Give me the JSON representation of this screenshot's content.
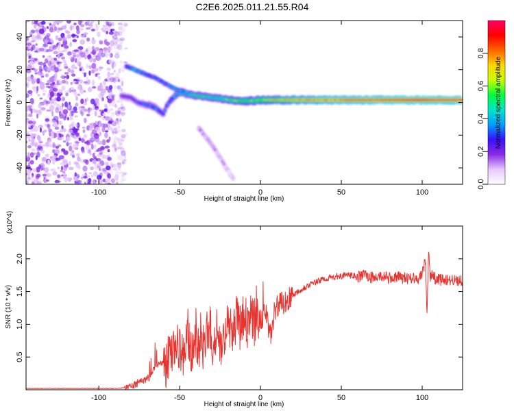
{
  "title": "C2E6.2025.011.21.55.R04",
  "chart_data": [
    {
      "type": "heatmap",
      "title": "C2E6.2025.011.21.55.R04",
      "xlabel": "Height of straight line (km)",
      "ylabel": "Frequency (Hz)",
      "xlim": [
        -145,
        125
      ],
      "ylim": [
        -50,
        50
      ],
      "x_ticks": [
        -100,
        -50,
        0,
        50,
        100
      ],
      "y_ticks": [
        -40,
        -20,
        0,
        20,
        40
      ],
      "colorbar": {
        "label": "Normalized spectral amplitude",
        "range": [
          0.0,
          1.0
        ],
        "ticks": [
          0.0,
          0.2,
          0.4,
          0.6,
          0.8
        ],
        "colors": [
          "#ffffff",
          "#e6c8ff",
          "#8a2be2",
          "#3a10ff",
          "#00a0ff",
          "#00e6c8",
          "#00ff40",
          "#c8ff00",
          "#ffd700",
          "#ff6400",
          "#ff0000",
          "#ff0064"
        ]
      },
      "features": [
        {
          "name": "noise",
          "x_range": [
            -145,
            -84
          ],
          "y_range": [
            -50,
            50
          ],
          "amplitude": 0.1
        },
        {
          "name": "main-trace",
          "points": [
            [
              -86,
              4
            ],
            [
              -80,
              3
            ],
            [
              -76,
              0
            ],
            [
              -72,
              -1
            ],
            [
              -68,
              -2
            ],
            [
              -64,
              -4
            ],
            [
              -60,
              -7
            ],
            [
              -58,
              -2
            ],
            [
              -55,
              2
            ],
            [
              -50,
              6
            ],
            [
              -45,
              5
            ],
            [
              -38,
              4
            ],
            [
              -30,
              3
            ],
            [
              -22,
              2
            ],
            [
              -15,
              1
            ],
            [
              -5,
              1
            ],
            [
              0,
              1.5
            ],
            [
              10,
              1.5
            ],
            [
              20,
              1.5
            ],
            [
              40,
              1.5
            ],
            [
              60,
              1.5
            ],
            [
              80,
              1.5
            ],
            [
              100,
              1.5
            ],
            [
              110,
              1.5
            ],
            [
              125,
              1.5
            ]
          ],
          "amplitude": [
            0.2,
            0.2,
            0.25,
            0.3,
            0.35,
            0.35,
            0.3,
            0.3,
            0.35,
            0.45,
            0.5,
            0.5,
            0.5,
            0.55,
            0.6,
            0.6,
            0.65,
            0.7,
            0.75,
            0.8,
            0.85,
            0.9,
            0.95,
            0.9,
            0.9
          ]
        },
        {
          "name": "upper-branch",
          "points": [
            [
              -83,
              22
            ],
            [
              -78,
              20
            ],
            [
              -73,
              18
            ],
            [
              -65,
              15
            ],
            [
              -58,
              11
            ],
            [
              -52,
              8
            ],
            [
              -45,
              6
            ]
          ],
          "amplitude": [
            0.3,
            0.4,
            0.35,
            0.3,
            0.3,
            0.35,
            0.4
          ]
        },
        {
          "name": "faint-tail",
          "points": [
            [
              -38,
              -16
            ],
            [
              -30,
              -26
            ],
            [
              -16,
              -48
            ]
          ],
          "amplitude": [
            0.1,
            0.08,
            0.06
          ]
        }
      ]
    },
    {
      "type": "line",
      "xlabel": "Height of straight line (km)",
      "ylabel": "SNR (10 * v/v)",
      "y_multiplier": "(x10^4)",
      "xlim": [
        -145,
        125
      ],
      "ylim": [
        0,
        2.5
      ],
      "x_ticks": [
        -100,
        -50,
        0,
        50,
        100
      ],
      "y_ticks": [
        0.5,
        1.0,
        1.5,
        2.0
      ],
      "color": "#e8332f",
      "series": [
        {
          "x": [
            -145,
            -120,
            -100,
            -90,
            -85,
            -80,
            -76,
            -72,
            -68,
            -65,
            -62,
            -59,
            -55,
            -52,
            -48,
            -45,
            -42,
            -40,
            -36,
            -33,
            -30,
            -27,
            -24,
            -20,
            -17,
            -15,
            -12,
            -10,
            -8,
            -6,
            -4,
            -2,
            0,
            3,
            6,
            8,
            10,
            12,
            15,
            18,
            20,
            23,
            26,
            30,
            35,
            40,
            45,
            50,
            55,
            60,
            65,
            70,
            75,
            80,
            85,
            90,
            95,
            98,
            100,
            102,
            103,
            104,
            105,
            106,
            108,
            110,
            115,
            120,
            125
          ],
          "values": [
            0.02,
            0.02,
            0.02,
            0.02,
            0.03,
            0.05,
            0.1,
            0.15,
            0.2,
            0.35,
            0.45,
            0.35,
            0.55,
            0.7,
            0.5,
            0.8,
            0.55,
            0.75,
            0.6,
            0.85,
            0.65,
            0.9,
            0.7,
            1.0,
            0.8,
            1.1,
            0.9,
            1.2,
            0.95,
            1.15,
            1.0,
            1.15,
            1.05,
            1.2,
            0.8,
            1.05,
            1.25,
            1.3,
            1.35,
            1.4,
            1.45,
            1.5,
            1.55,
            1.6,
            1.65,
            1.7,
            1.72,
            1.74,
            1.75,
            1.72,
            1.76,
            1.7,
            1.74,
            1.7,
            1.72,
            1.7,
            1.72,
            1.7,
            1.75,
            2.0,
            1.1,
            2.2,
            1.7,
            1.75,
            1.7,
            1.68,
            1.68,
            1.67,
            1.67
          ]
        }
      ]
    }
  ]
}
